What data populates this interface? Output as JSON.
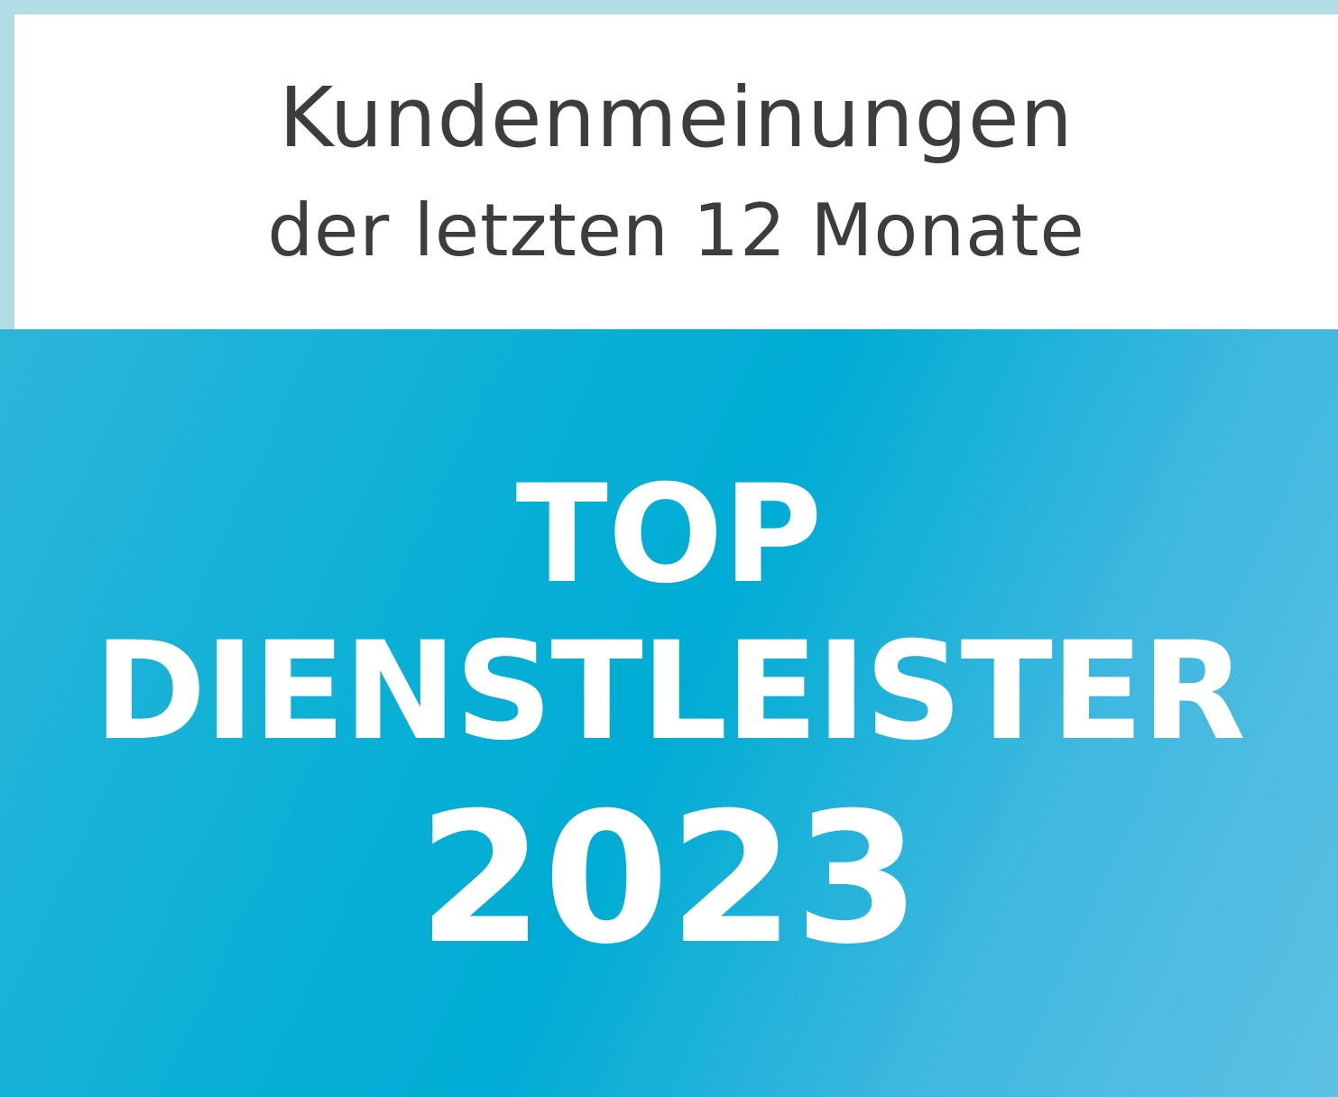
{
  "header": {
    "line1": "Kundenmeinungen",
    "line2": "der letzten 12 Monate"
  },
  "badge": {
    "line1": "TOP",
    "line2": "DIENSTLEISTER",
    "year": "2023"
  },
  "colors": {
    "border": "#b2dce6",
    "accent": "#00acd4",
    "header_text": "#3d3d3d"
  }
}
